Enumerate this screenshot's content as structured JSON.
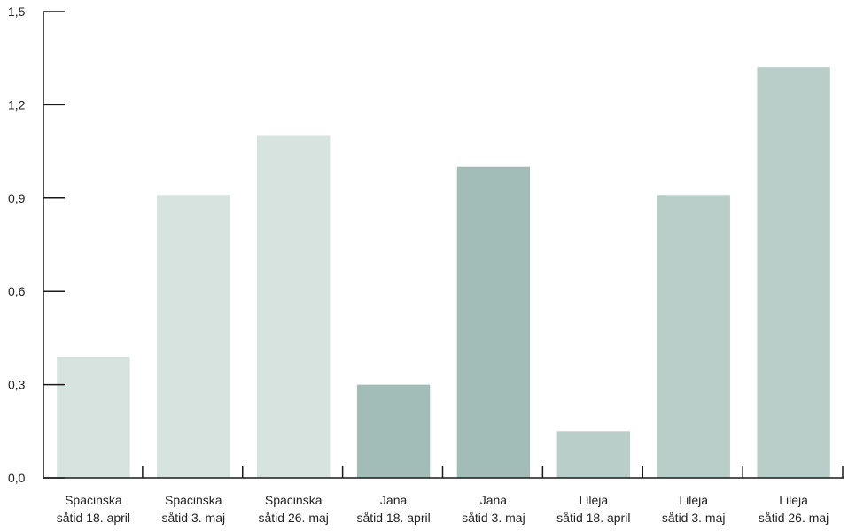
{
  "chart_data": {
    "type": "bar",
    "categories": [
      [
        "Spacinska",
        "såtid 18. april"
      ],
      [
        "Spacinska",
        "såtid 3. maj"
      ],
      [
        "Spacinska",
        "såtid 26. maj"
      ],
      [
        "Jana",
        "såtid 18. april"
      ],
      [
        "Jana",
        "såtid 3. maj"
      ],
      [
        "Lileja",
        "såtid 18. april"
      ],
      [
        "Lileja",
        "såtid 3. maj"
      ],
      [
        "Lileja",
        "såtid 26. maj"
      ]
    ],
    "values": [
      0.39,
      0.91,
      1.1,
      0.3,
      1.0,
      0.15,
      0.91,
      1.32
    ],
    "colors": [
      "#d6e3df",
      "#d6e3df",
      "#d6e3df",
      "#a2bcb7",
      "#a2bcb7",
      "#b9cec9",
      "#b9cec9",
      "#b9cec9"
    ],
    "ylim": [
      0,
      1.5
    ],
    "yticks": [
      "0,0",
      "0,3",
      "0,6",
      "0,9",
      "1,2",
      "1,5"
    ],
    "title": "",
    "xlabel": "",
    "ylabel": "",
    "grid": false,
    "legend": "none"
  }
}
